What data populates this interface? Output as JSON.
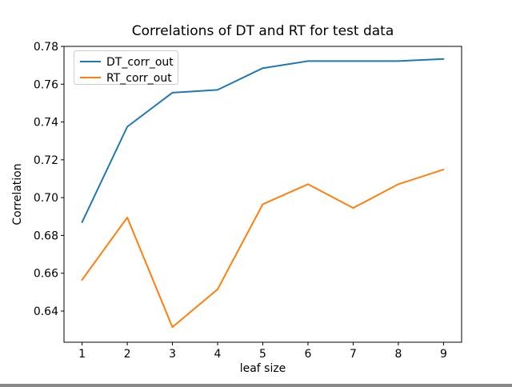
{
  "figure": {
    "background": "#ffffff",
    "spine_color": "#000000",
    "legend_border_color": "#cccccc"
  },
  "chart_data": {
    "type": "line",
    "title": "Correlations of DT and RT for test data",
    "xlabel": "leaf size",
    "ylabel": "Correlation",
    "x": [
      1,
      2,
      3,
      4,
      5,
      6,
      7,
      8,
      9
    ],
    "series": [
      {
        "name": "DT_corr_out",
        "color": "#1f77b4",
        "values": [
          0.687,
          0.7375,
          0.7555,
          0.757,
          0.7685,
          0.7722,
          0.7722,
          0.7722,
          0.7733
        ]
      },
      {
        "name": "RT_corr_out",
        "color": "#ff7f0e",
        "values": [
          0.6565,
          0.6895,
          0.6315,
          0.6515,
          0.6965,
          0.7071,
          0.6945,
          0.7071,
          0.7148
        ]
      }
    ],
    "xticks": [
      1,
      2,
      3,
      4,
      5,
      6,
      7,
      8,
      9
    ],
    "xtick_labels": [
      "1",
      "2",
      "3",
      "4",
      "5",
      "6",
      "7",
      "8",
      "9"
    ],
    "yticks": [
      0.64,
      0.66,
      0.68,
      0.7,
      0.72,
      0.74,
      0.76,
      0.78
    ],
    "ytick_labels": [
      "0.64",
      "0.66",
      "0.68",
      "0.70",
      "0.72",
      "0.74",
      "0.76",
      "0.78"
    ],
    "xlim": [
      0.6,
      9.4
    ],
    "ylim": [
      0.6235,
      0.78
    ],
    "grid": false,
    "legend_position": "upper left"
  }
}
